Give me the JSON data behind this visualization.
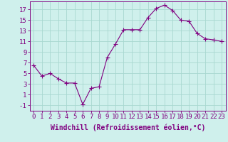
{
  "x": [
    0,
    1,
    2,
    3,
    4,
    5,
    6,
    7,
    8,
    9,
    10,
    11,
    12,
    13,
    14,
    15,
    16,
    17,
    18,
    19,
    20,
    21,
    22,
    23
  ],
  "y": [
    6.5,
    4.5,
    5.0,
    4.0,
    3.2,
    3.2,
    -0.8,
    2.2,
    2.5,
    8.0,
    10.5,
    13.2,
    13.2,
    13.2,
    15.5,
    17.2,
    17.8,
    16.8,
    15.0,
    14.8,
    12.5,
    11.5,
    11.3,
    11.0
  ],
  "line_color": "#800080",
  "marker": "+",
  "marker_size": 4,
  "bg_color": "#cff0ec",
  "grid_color": "#a8d8d0",
  "xlabel": "Windchill (Refroidissement éolien,°C)",
  "xlim": [
    -0.5,
    23.5
  ],
  "ylim": [
    -2,
    18.5
  ],
  "yticks": [
    17,
    15,
    13,
    11,
    9,
    7,
    5,
    3,
    1,
    -1
  ],
  "xticks": [
    0,
    1,
    2,
    3,
    4,
    5,
    6,
    7,
    8,
    9,
    10,
    11,
    12,
    13,
    14,
    15,
    16,
    17,
    18,
    19,
    20,
    21,
    22,
    23
  ],
  "tick_color": "#800080",
  "label_color": "#800080",
  "spine_color": "#800080",
  "font_size": 6.5
}
